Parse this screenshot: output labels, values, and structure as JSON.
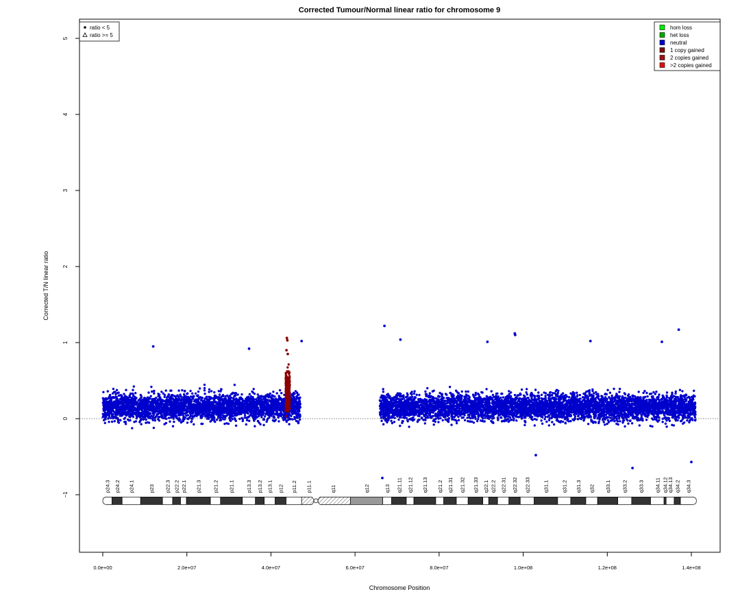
{
  "chart_data": {
    "type": "scatter",
    "title": "Corrected Tumour/Normal linear ratio for chromosome  9",
    "xlabel": "Chromosome Position",
    "ylabel": "Corrected T/N linear ratio",
    "xlim": [
      -1000000,
      142000000
    ],
    "ylim": [
      -1.75,
      5.25
    ],
    "x_ticks": [
      0,
      20000000,
      40000000,
      60000000,
      80000000,
      100000000,
      120000000,
      140000000
    ],
    "x_tick_labels": [
      "0.0e+00",
      "2.0e+07",
      "4.0e+07",
      "6.0e+07",
      "8.0e+07",
      "1.0e+08",
      "1.2e+08",
      "1.4e+08"
    ],
    "y_ticks": [
      -1,
      0,
      1,
      2,
      3,
      4,
      5
    ],
    "y_tick_labels": [
      "−1",
      "0",
      "1",
      "2",
      "3",
      "4",
      "5"
    ],
    "reference_line_y": 0,
    "grid": false,
    "shape_legend": {
      "placement": "top-left",
      "entries": [
        {
          "label": "ratio < 5",
          "symbol": "dot"
        },
        {
          "label": "ratio >= 5",
          "symbol": "triangle"
        }
      ]
    },
    "legend": {
      "placement": "top-right",
      "entries": [
        {
          "label": "hom loss",
          "color": "#00ee00"
        },
        {
          "label": "het loss",
          "color": "#00aa00"
        },
        {
          "label": "neutral",
          "color": "#0000cd"
        },
        {
          "label": "1 copy gained",
          "color": "#7a1010"
        },
        {
          "label": "2 copies gained",
          "color": "#a01010"
        },
        {
          "label": ">2 copies gained",
          "color": "#dd1111"
        }
      ]
    },
    "point_colors": {
      "neutral": "#0000cd",
      "gain": "#8b0000"
    },
    "series": [
      {
        "name": "neutral",
        "color": "#0000cd",
        "segments": [
          {
            "x_start": 0,
            "x_end": 47000000,
            "mean": 0.15,
            "spread": 0.18
          },
          {
            "x_start": 65900000,
            "x_end": 141000000,
            "mean": 0.15,
            "spread": 0.18
          }
        ]
      },
      {
        "name": "1 copy gained",
        "color": "#8b0000",
        "segments": [
          {
            "x_start": 43500000,
            "x_end": 44500000,
            "mean": 0.35,
            "spread": 0.25
          }
        ]
      }
    ],
    "outlier_points": [
      {
        "x": 67000000,
        "y": 1.22
      },
      {
        "x": 70800000,
        "y": 1.04
      },
      {
        "x": 98000000,
        "y": 1.12
      },
      {
        "x": 98100000,
        "y": 1.1
      },
      {
        "x": 137000000,
        "y": 1.17
      },
      {
        "x": 116000000,
        "y": 1.02
      },
      {
        "x": 91500000,
        "y": 1.01
      },
      {
        "x": 47300000,
        "y": 1.02
      },
      {
        "x": 12000000,
        "y": 0.95
      },
      {
        "x": 34800000,
        "y": 0.92
      },
      {
        "x": 133000000,
        "y": 1.01
      },
      {
        "x": 126000000,
        "y": -0.65
      },
      {
        "x": 66500000,
        "y": -0.78
      },
      {
        "x": 140000000,
        "y": -0.57
      },
      {
        "x": 103000000,
        "y": -0.48
      }
    ],
    "gain_outliers": [
      {
        "x": 43800000,
        "y": 1.06
      },
      {
        "x": 43900000,
        "y": 1.03
      },
      {
        "x": 43700000,
        "y": 0.9
      },
      {
        "x": 44000000,
        "y": 0.85
      }
    ],
    "ideogram": {
      "y": -1.08,
      "bands": [
        {
          "name": "p24.3",
          "start": 0,
          "end": 2200000,
          "stain": "gneg"
        },
        {
          "name": "p24.2",
          "start": 2200000,
          "end": 4600000,
          "stain": "gpos"
        },
        {
          "name": "p24.1",
          "start": 4600000,
          "end": 9000000,
          "stain": "gneg"
        },
        {
          "name": "p23",
          "start": 9000000,
          "end": 14200000,
          "stain": "gpos"
        },
        {
          "name": "p22.3",
          "start": 14200000,
          "end": 16600000,
          "stain": "gneg"
        },
        {
          "name": "p22.2",
          "start": 16600000,
          "end": 18500000,
          "stain": "gpos"
        },
        {
          "name": "p22.1",
          "start": 18500000,
          "end": 19900000,
          "stain": "gneg"
        },
        {
          "name": "p21.3",
          "start": 19900000,
          "end": 25600000,
          "stain": "gpos"
        },
        {
          "name": "p21.2",
          "start": 25600000,
          "end": 28000000,
          "stain": "gneg"
        },
        {
          "name": "p21.1",
          "start": 28000000,
          "end": 33200000,
          "stain": "gpos"
        },
        {
          "name": "p13.3",
          "start": 33200000,
          "end": 36300000,
          "stain": "gneg"
        },
        {
          "name": "p13.2",
          "start": 36300000,
          "end": 38400000,
          "stain": "gpos"
        },
        {
          "name": "p13.1",
          "start": 38400000,
          "end": 41000000,
          "stain": "gneg"
        },
        {
          "name": "p12",
          "start": 41000000,
          "end": 43600000,
          "stain": "gpos"
        },
        {
          "name": "p11.2",
          "start": 43600000,
          "end": 47300000,
          "stain": "gneg"
        },
        {
          "name": "p11.1",
          "start": 47300000,
          "end": 50700000,
          "stain": "stalk"
        },
        {
          "name": "q11",
          "start": 50700000,
          "end": 58900000,
          "stain": "stalk"
        },
        {
          "name": "q12",
          "start": 58900000,
          "end": 66600000,
          "stain": "gvar"
        },
        {
          "name": "q13",
          "start": 66600000,
          "end": 68700000,
          "stain": "gneg"
        },
        {
          "name": "q21.11",
          "start": 68700000,
          "end": 72200000,
          "stain": "gpos"
        },
        {
          "name": "q21.12",
          "start": 72200000,
          "end": 74000000,
          "stain": "gneg"
        },
        {
          "name": "q21.13",
          "start": 74000000,
          "end": 79200000,
          "stain": "gpos"
        },
        {
          "name": "q21.2",
          "start": 79200000,
          "end": 81100000,
          "stain": "gneg"
        },
        {
          "name": "q21.31",
          "start": 81100000,
          "end": 84100000,
          "stain": "gpos"
        },
        {
          "name": "q21.32",
          "start": 84100000,
          "end": 86900000,
          "stain": "gneg"
        },
        {
          "name": "q21.33",
          "start": 86900000,
          "end": 90400000,
          "stain": "gpos"
        },
        {
          "name": "q22.1",
          "start": 90400000,
          "end": 91800000,
          "stain": "gneg"
        },
        {
          "name": "q22.2",
          "start": 91800000,
          "end": 93900000,
          "stain": "gpos"
        },
        {
          "name": "q22.31",
          "start": 93900000,
          "end": 96600000,
          "stain": "gneg"
        },
        {
          "name": "q22.32",
          "start": 96600000,
          "end": 99300000,
          "stain": "gpos"
        },
        {
          "name": "q22.33",
          "start": 99300000,
          "end": 102600000,
          "stain": "gneg"
        },
        {
          "name": "q31.1",
          "start": 102600000,
          "end": 108200000,
          "stain": "gpos"
        },
        {
          "name": "q31.2",
          "start": 108200000,
          "end": 111300000,
          "stain": "gneg"
        },
        {
          "name": "q31.3",
          "start": 111300000,
          "end": 114900000,
          "stain": "gpos"
        },
        {
          "name": "q32",
          "start": 114900000,
          "end": 117700000,
          "stain": "gneg"
        },
        {
          "name": "q33.1",
          "start": 117700000,
          "end": 122500000,
          "stain": "gpos"
        },
        {
          "name": "q33.2",
          "start": 122500000,
          "end": 125800000,
          "stain": "gneg"
        },
        {
          "name": "q33.3",
          "start": 125800000,
          "end": 130300000,
          "stain": "gpos"
        },
        {
          "name": "q34.11",
          "start": 130300000,
          "end": 133500000,
          "stain": "gneg"
        },
        {
          "name": "q34.12",
          "start": 133500000,
          "end": 134000000,
          "stain": "gpos"
        },
        {
          "name": "q34.13",
          "start": 134000000,
          "end": 135900000,
          "stain": "gneg"
        },
        {
          "name": "q34.2",
          "start": 135900000,
          "end": 137400000,
          "stain": "gpos"
        },
        {
          "name": "q34.3",
          "start": 137400000,
          "end": 141200000,
          "stain": "gneg"
        }
      ]
    }
  }
}
